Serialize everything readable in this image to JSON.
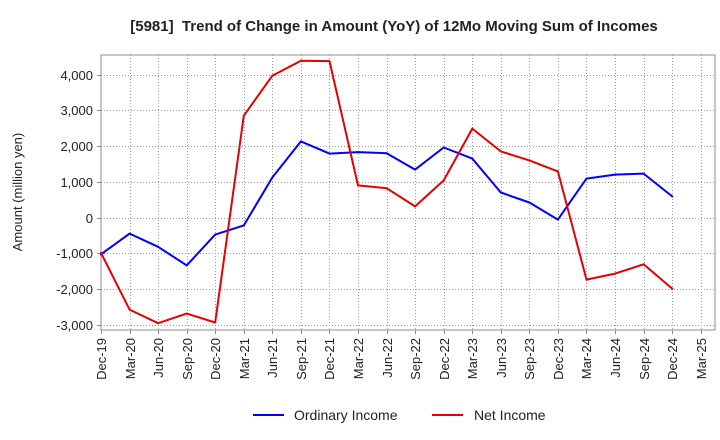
{
  "chart_data": {
    "type": "line",
    "title": "[5981]  Trend of Change in Amount (YoY) of 12Mo Moving Sum of Incomes",
    "xlabel": "",
    "ylabel": "Amount (million yen)",
    "categories": [
      "Dec-19",
      "Mar-20",
      "Jun-20",
      "Sep-20",
      "Dec-20",
      "Mar-21",
      "Jun-21",
      "Sep-21",
      "Dec-21",
      "Mar-22",
      "Jun-22",
      "Sep-22",
      "Dec-22",
      "Mar-23",
      "Jun-23",
      "Sep-23",
      "Dec-23",
      "Mar-24",
      "Jun-24",
      "Sep-24",
      "Dec-24",
      "Mar-25"
    ],
    "ylim": [
      -3150,
      4550
    ],
    "y_ticks": [
      -3000,
      -2000,
      -1000,
      0,
      1000,
      2000,
      3000,
      4000
    ],
    "y_tick_labels": [
      "-3,000",
      "-2,000",
      "-1,000",
      "0",
      "1,000",
      "2,000",
      "3,000",
      "4,000"
    ],
    "grid": true,
    "legend_position": "bottom",
    "series": [
      {
        "name": "Ordinary Income",
        "color": "#0000ff",
        "values": [
          -1030,
          -450,
          -820,
          -1340,
          -480,
          -220,
          1120,
          2130,
          1790,
          1830,
          1800,
          1340,
          1960,
          1650,
          700,
          420,
          -60,
          1090,
          1200,
          1230,
          590,
          null
        ]
      },
      {
        "name": "Net Income",
        "color": "#e60000",
        "values": [
          -990,
          -2580,
          -2960,
          -2690,
          -2940,
          2850,
          3970,
          4390,
          4380,
          900,
          820,
          310,
          1040,
          2490,
          1850,
          1600,
          1290,
          -1740,
          -1570,
          -1310,
          -1990,
          null
        ]
      }
    ]
  }
}
